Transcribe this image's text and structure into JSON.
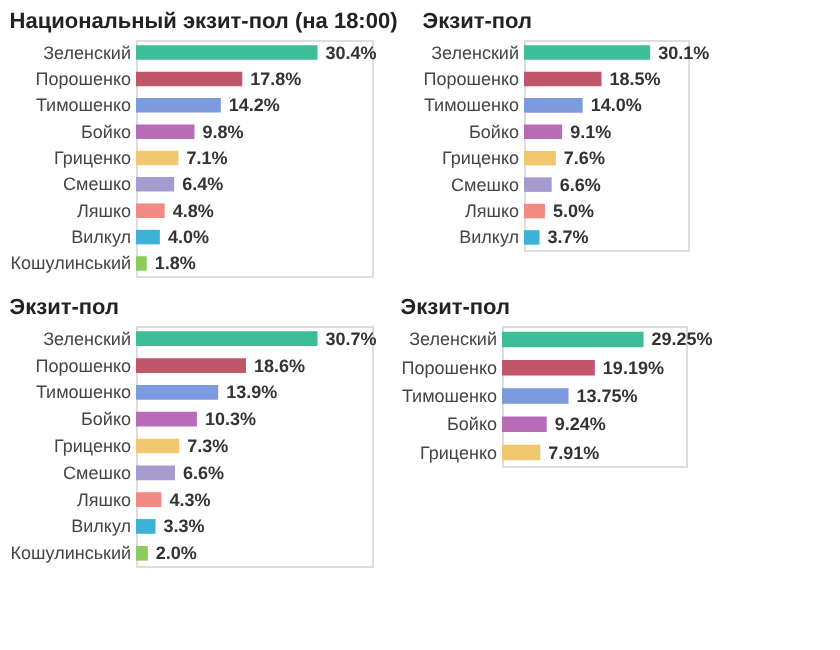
{
  "chart_data": [
    {
      "type": "bar",
      "orientation": "horizontal",
      "title": "Национальный экзит-пол (на 18:00)",
      "tick_labels": "y",
      "categories": [
        "Зеленский",
        "Порошенко",
        "Тимошенко",
        "Бойко",
        "Гриценко",
        "Смешко",
        "Ляшко",
        "Вилкул",
        "Кошулинський"
      ],
      "values": [
        30.4,
        17.8,
        14.2,
        9.8,
        7.1,
        6.4,
        4.8,
        4.0,
        1.8
      ],
      "value_labels": [
        "30.4%",
        "17.8%",
        "14.2%",
        "9.8%",
        "7.1%",
        "6.4%",
        "4.8%",
        "4.0%",
        "1.8%"
      ],
      "colors": [
        "#3dbd98",
        "#c0566a",
        "#7b9ae0",
        "#b86cb8",
        "#f2c66c",
        "#a59bd0",
        "#f28a84",
        "#3cb2d8",
        "#8ccc5a"
      ]
    },
    {
      "type": "bar",
      "orientation": "horizontal",
      "title": "Экзит-пол",
      "tick_labels": "y",
      "categories": [
        "Зеленский",
        "Порошенко",
        "Тимошенко",
        "Бойко",
        "Гриценко",
        "Смешко",
        "Ляшко",
        "Вилкул"
      ],
      "values": [
        30.1,
        18.5,
        14.0,
        9.1,
        7.6,
        6.6,
        5.0,
        3.7
      ],
      "value_labels": [
        "30.1%",
        "18.5%",
        "14.0%",
        "9.1%",
        "7.6%",
        "6.6%",
        "5.0%",
        "3.7%"
      ],
      "colors": [
        "#3dbd98",
        "#c0566a",
        "#7b9ae0",
        "#b86cb8",
        "#f2c66c",
        "#a59bd0",
        "#f28a84",
        "#3cb2d8"
      ]
    },
    {
      "type": "bar",
      "orientation": "horizontal",
      "title": "Экзит-пол",
      "tick_labels": "y",
      "categories": [
        "Зеленский",
        "Порошенко",
        "Тимошенко",
        "Бойко",
        "Гриценко",
        "Смешко",
        "Ляшко",
        "Вилкул",
        "Кошулинський"
      ],
      "values": [
        30.7,
        18.6,
        13.9,
        10.3,
        7.3,
        6.6,
        4.3,
        3.3,
        2.0
      ],
      "value_labels": [
        "30.7%",
        "18.6%",
        "13.9%",
        "10.3%",
        "7.3%",
        "6.6%",
        "4.3%",
        "3.3%",
        "2.0%"
      ],
      "colors": [
        "#3dbd98",
        "#c0566a",
        "#7b9ae0",
        "#b86cb8",
        "#f2c66c",
        "#a59bd0",
        "#f28a84",
        "#3cb2d8",
        "#8ccc5a"
      ]
    },
    {
      "type": "bar",
      "orientation": "horizontal",
      "title": "Экзит-пол",
      "tick_labels": "y",
      "categories": [
        "Зеленский",
        "Порошенко",
        "Тимошенко",
        "Бойко",
        "Гриценко"
      ],
      "values": [
        29.25,
        19.19,
        13.75,
        9.24,
        7.91
      ],
      "value_labels": [
        "29.25%",
        "19.19%",
        "13.75%",
        "9.24%",
        "7.91%"
      ],
      "colors": [
        "#3dbd98",
        "#c0566a",
        "#7b9ae0",
        "#b86cb8",
        "#f2c66c"
      ]
    }
  ]
}
